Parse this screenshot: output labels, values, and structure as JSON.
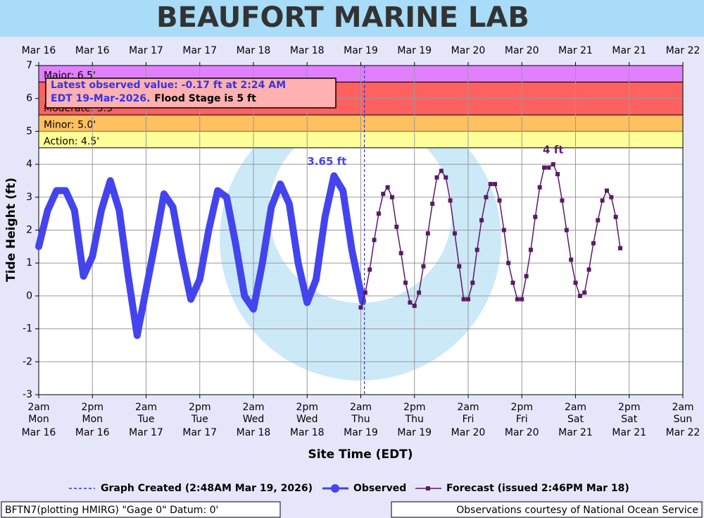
{
  "chart_data": {
    "type": "line",
    "title": "BEAUFORT MARINE LAB",
    "xlabel": "Site Time (EDT)",
    "ylabel": "Tide Height (ft)",
    "xlim": [
      0,
      144
    ],
    "ylim": [
      -3,
      7
    ],
    "yticks": [
      -3,
      -2,
      -1,
      0,
      1,
      2,
      3,
      4,
      5,
      6,
      7
    ],
    "grid": true,
    "xticks": [
      {
        "value": 0,
        "label": [
          "2am",
          "Mon",
          "Mar 16"
        ]
      },
      {
        "value": 12,
        "label": [
          "2pm",
          "Mon",
          "Mar 16"
        ]
      },
      {
        "value": 24,
        "label": [
          "2am",
          "Tue",
          "Mar 17"
        ]
      },
      {
        "value": 36,
        "label": [
          "2pm",
          "Tue",
          "Mar 17"
        ]
      },
      {
        "value": 48,
        "label": [
          "2am",
          "Wed",
          "Mar 18"
        ]
      },
      {
        "value": 60,
        "label": [
          "2pm",
          "Wed",
          "Mar 18"
        ]
      },
      {
        "value": 72,
        "label": [
          "2am",
          "Thu",
          "Mar 19"
        ]
      },
      {
        "value": 84,
        "label": [
          "2pm",
          "Thu",
          "Mar 19"
        ]
      },
      {
        "value": 96,
        "label": [
          "2am",
          "Fri",
          "Mar 20"
        ]
      },
      {
        "value": 108,
        "label": [
          "2pm",
          "Fri",
          "Mar 20"
        ]
      },
      {
        "value": 120,
        "label": [
          "2am",
          "Sat",
          "Mar 21"
        ]
      },
      {
        "value": 132,
        "label": [
          "2pm",
          "Sat",
          "Mar 21"
        ]
      },
      {
        "value": 144,
        "label": [
          "2am",
          "Sun",
          "Mar 22"
        ]
      }
    ],
    "xticks_top": [
      {
        "value": 0,
        "label": "Mar 16"
      },
      {
        "value": 12,
        "label": "Mar 16"
      },
      {
        "value": 24,
        "label": "Mar 17"
      },
      {
        "value": 36,
        "label": "Mar 17"
      },
      {
        "value": 48,
        "label": "Mar 18"
      },
      {
        "value": 60,
        "label": "Mar 18"
      },
      {
        "value": 72,
        "label": "Mar 19"
      },
      {
        "value": 84,
        "label": "Mar 19"
      },
      {
        "value": 96,
        "label": "Mar 20"
      },
      {
        "value": 108,
        "label": "Mar 20"
      },
      {
        "value": 120,
        "label": "Mar 21"
      },
      {
        "value": 132,
        "label": "Mar 21"
      },
      {
        "value": 144,
        "label": "Mar 22"
      }
    ],
    "flood_stages": [
      {
        "label": "Action: 4.5'",
        "value": 4.5,
        "color": "#ffff99"
      },
      {
        "label": "Minor: 5.0'",
        "value": 5.0,
        "color": "#ffc060"
      },
      {
        "label": "Moderate: 5.5'",
        "value": 5.5,
        "color": "#ff6060"
      },
      {
        "label": "Major: 6.5'",
        "value": 6.5,
        "color": "#e080ff"
      }
    ],
    "info": [
      "Latest observed value: -0.17 ft at 2:24 AM",
      "EDT 19-Mar-2026.",
      "Flood Stage is 5 ft"
    ],
    "created_line": {
      "value": 72.8,
      "label": "Graph Created (2:48AM Mar 19, 2026)",
      "color": "#3333cc"
    },
    "series": [
      {
        "name": "Observed",
        "color": "#4444ee",
        "peak_label": "3.65 ft",
        "x": [
          0,
          2,
          4,
          6,
          8,
          10,
          12,
          14,
          16,
          18,
          20,
          22,
          24,
          26,
          28,
          30,
          32,
          34,
          36,
          38,
          40,
          42,
          44,
          46,
          48,
          50,
          52,
          54,
          56,
          58,
          60,
          62,
          64,
          66,
          68,
          70,
          72.4
        ],
        "values": [
          1.5,
          2.6,
          3.2,
          3.2,
          2.6,
          0.6,
          1.2,
          2.6,
          3.5,
          2.6,
          0.6,
          -1.2,
          0.2,
          1.6,
          3.1,
          2.7,
          1.2,
          -0.1,
          0.5,
          2.0,
          3.2,
          3.0,
          1.6,
          0.0,
          -0.4,
          1.0,
          2.7,
          3.4,
          2.8,
          1.0,
          -0.2,
          0.5,
          2.4,
          3.65,
          3.2,
          1.4,
          -0.17
        ]
      },
      {
        "name": "Forecast (issued 2:46PM Mar 18)",
        "color": "#5a1a66",
        "peak_label": "4 ft",
        "x": [
          72,
          73,
          74,
          75,
          76,
          77,
          78,
          79,
          80,
          81,
          82,
          83,
          84,
          85,
          86,
          87,
          88,
          89,
          90,
          91,
          92,
          93,
          94,
          95,
          96,
          97,
          98,
          99,
          100,
          101,
          102,
          103,
          104,
          105,
          106,
          107,
          108,
          109,
          110,
          111,
          112,
          113,
          114,
          115,
          116,
          117,
          118,
          119,
          120,
          121,
          122,
          123,
          124,
          125,
          126,
          127,
          128,
          129,
          130
        ],
        "values": [
          -0.35,
          0.1,
          0.8,
          1.7,
          2.5,
          3.1,
          3.3,
          3.0,
          2.1,
          1.3,
          0.4,
          -0.2,
          -0.3,
          0.1,
          0.9,
          1.9,
          2.8,
          3.6,
          3.8,
          3.6,
          2.9,
          1.9,
          0.9,
          -0.1,
          -0.1,
          0.4,
          1.4,
          2.3,
          3.0,
          3.4,
          3.4,
          2.9,
          2.0,
          1.0,
          0.4,
          -0.1,
          -0.1,
          0.6,
          1.4,
          2.4,
          3.3,
          3.9,
          3.9,
          4.0,
          3.7,
          2.9,
          2.0,
          1.1,
          0.4,
          0.0,
          0.1,
          0.8,
          1.6,
          2.3,
          2.9,
          3.2,
          3.0,
          2.4,
          1.45
        ]
      }
    ],
    "footer": [
      "BFTN7(plotting HMIRG) \"Gage 0\" Datum: 0'",
      "Observations courtesy of National Ocean Service"
    ]
  }
}
